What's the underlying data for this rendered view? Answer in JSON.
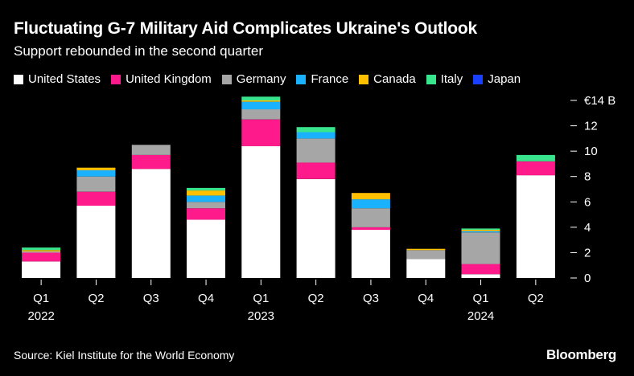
{
  "chart_data": {
    "type": "bar",
    "stacked": true,
    "title": "Fluctuating G-7 Military Aid Complicates Ukraine's Outlook",
    "subtitle": "Support rebounded in the second quarter",
    "categories": [
      "Q1",
      "Q2",
      "Q3",
      "Q4",
      "Q1",
      "Q2",
      "Q3",
      "Q4",
      "Q1",
      "Q2"
    ],
    "year_labels": [
      "2022",
      "",
      "",
      "",
      "2023",
      "",
      "",
      "",
      "2024",
      ""
    ],
    "series": [
      {
        "name": "United States",
        "color": "#ffffff",
        "values": [
          1.3,
          5.7,
          8.6,
          4.6,
          10.4,
          7.8,
          3.8,
          1.5,
          0.3,
          8.1
        ]
      },
      {
        "name": "United Kingdom",
        "color": "#ff1a8c",
        "values": [
          0.7,
          1.1,
          1.1,
          0.9,
          2.1,
          1.3,
          0.2,
          0.0,
          0.8,
          1.1
        ]
      },
      {
        "name": "Germany",
        "color": "#a6a6a6",
        "values": [
          0.1,
          1.2,
          0.8,
          0.5,
          0.8,
          1.9,
          1.5,
          0.7,
          2.5,
          0.0
        ]
      },
      {
        "name": "France",
        "color": "#1ab2ff",
        "values": [
          0.0,
          0.5,
          0.0,
          0.5,
          0.6,
          0.5,
          0.7,
          0.0,
          0.1,
          0.0
        ]
      },
      {
        "name": "Canada",
        "color": "#ffc000",
        "values": [
          0.1,
          0.2,
          0.0,
          0.4,
          0.1,
          0.0,
          0.5,
          0.1,
          0.1,
          0.0
        ]
      },
      {
        "name": "Italy",
        "color": "#39e58c",
        "values": [
          0.2,
          0.0,
          0.0,
          0.2,
          0.3,
          0.4,
          0.0,
          0.0,
          0.1,
          0.5
        ]
      },
      {
        "name": "Japan",
        "color": "#1a40ff",
        "values": [
          0.0,
          0.0,
          0.0,
          0.0,
          0.0,
          0.0,
          0.0,
          0.0,
          0.0,
          0.0
        ]
      }
    ],
    "ylim": [
      0,
      14
    ],
    "yticks": [
      0,
      2,
      4,
      6,
      8,
      10,
      12,
      14
    ],
    "ytick_labels": [
      "0",
      "2",
      "4",
      "6",
      "8",
      "10",
      "12",
      "€14 B"
    ],
    "xlabel": "",
    "ylabel": "",
    "legend_position": "top-left"
  },
  "source": "Source: Kiel Institute for the World Economy",
  "brand": "Bloomberg"
}
